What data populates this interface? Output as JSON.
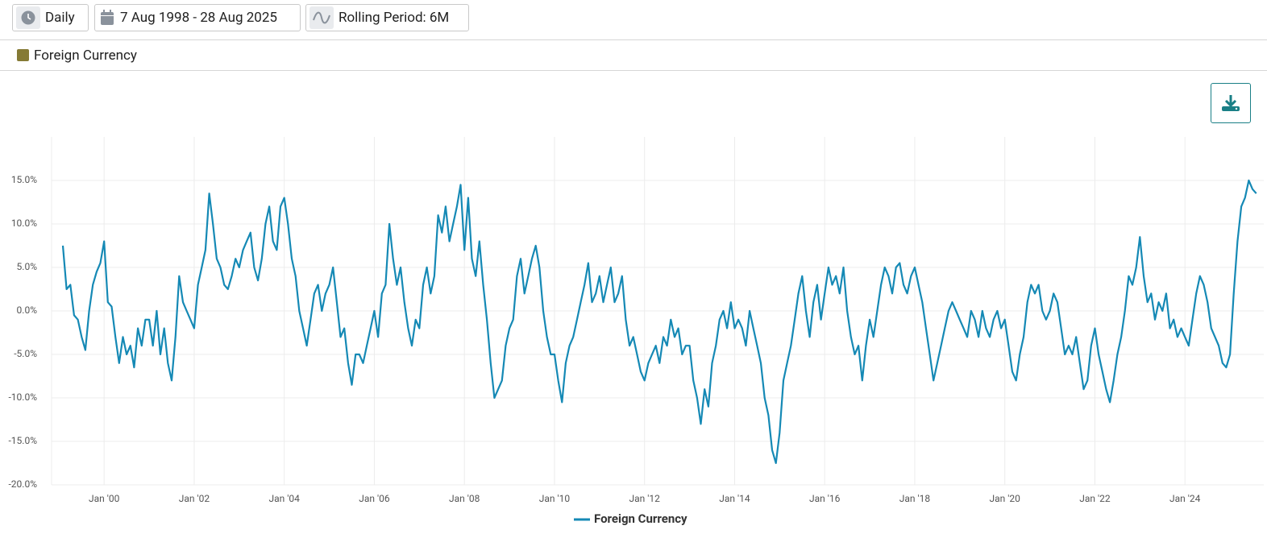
{
  "toolbar": {
    "frequency": "Daily",
    "date_range": "7 Aug 1998 - 28 Aug 2025",
    "rolling_period": "Rolling Period: 6M"
  },
  "filters": [
    {
      "name": "Foreign Currency",
      "color": "#857a35"
    }
  ],
  "chart_data": {
    "type": "line",
    "x": [
      "1999-02",
      "1999-03",
      "1999-04",
      "1999-05",
      "1999-06",
      "1999-07",
      "1999-08",
      "1999-09",
      "1999-10",
      "1999-11",
      "1999-12",
      "2000-01",
      "2000-02",
      "2000-03",
      "2000-04",
      "2000-05",
      "2000-06",
      "2000-07",
      "2000-08",
      "2000-09",
      "2000-10",
      "2000-11",
      "2000-12",
      "2001-01",
      "2001-02",
      "2001-03",
      "2001-04",
      "2001-05",
      "2001-06",
      "2001-07",
      "2001-08",
      "2001-09",
      "2001-10",
      "2001-11",
      "2001-12",
      "2002-01",
      "2002-02",
      "2002-03",
      "2002-04",
      "2002-05",
      "2002-06",
      "2002-07",
      "2002-08",
      "2002-09",
      "2002-10",
      "2002-11",
      "2002-12",
      "2003-01",
      "2003-02",
      "2003-03",
      "2003-04",
      "2003-05",
      "2003-06",
      "2003-07",
      "2003-08",
      "2003-09",
      "2003-10",
      "2003-11",
      "2003-12",
      "2004-01",
      "2004-02",
      "2004-03",
      "2004-04",
      "2004-05",
      "2004-06",
      "2004-07",
      "2004-08",
      "2004-09",
      "2004-10",
      "2004-11",
      "2004-12",
      "2005-01",
      "2005-02",
      "2005-03",
      "2005-04",
      "2005-05",
      "2005-06",
      "2005-07",
      "2005-08",
      "2005-09",
      "2005-10",
      "2005-11",
      "2005-12",
      "2006-01",
      "2006-02",
      "2006-03",
      "2006-04",
      "2006-05",
      "2006-06",
      "2006-07",
      "2006-08",
      "2006-09",
      "2006-10",
      "2006-11",
      "2006-12",
      "2007-01",
      "2007-02",
      "2007-03",
      "2007-04",
      "2007-05",
      "2007-06",
      "2007-07",
      "2007-08",
      "2007-09",
      "2007-10",
      "2007-11",
      "2007-12",
      "2008-01",
      "2008-02",
      "2008-03",
      "2008-04",
      "2008-05",
      "2008-06",
      "2008-07",
      "2008-08",
      "2008-09",
      "2008-10",
      "2008-11",
      "2008-12",
      "2009-01",
      "2009-02",
      "2009-03",
      "2009-04",
      "2009-05",
      "2009-06",
      "2009-07",
      "2009-08",
      "2009-09",
      "2009-10",
      "2009-11",
      "2009-12",
      "2010-01",
      "2010-02",
      "2010-03",
      "2010-04",
      "2010-05",
      "2010-06",
      "2010-07",
      "2010-08",
      "2010-09",
      "2010-10",
      "2010-11",
      "2010-12",
      "2011-01",
      "2011-02",
      "2011-03",
      "2011-04",
      "2011-05",
      "2011-06",
      "2011-07",
      "2011-08",
      "2011-09",
      "2011-10",
      "2011-11",
      "2011-12",
      "2012-01",
      "2012-02",
      "2012-03",
      "2012-04",
      "2012-05",
      "2012-06",
      "2012-07",
      "2012-08",
      "2012-09",
      "2012-10",
      "2012-11",
      "2012-12",
      "2013-01",
      "2013-02",
      "2013-03",
      "2013-04",
      "2013-05",
      "2013-06",
      "2013-07",
      "2013-08",
      "2013-09",
      "2013-10",
      "2013-11",
      "2013-12",
      "2014-01",
      "2014-02",
      "2014-03",
      "2014-04",
      "2014-05",
      "2014-06",
      "2014-07",
      "2014-08",
      "2014-09",
      "2014-10",
      "2014-11",
      "2014-12",
      "2015-01",
      "2015-02",
      "2015-03",
      "2015-04",
      "2015-05",
      "2015-06",
      "2015-07",
      "2015-08",
      "2015-09",
      "2015-10",
      "2015-11",
      "2015-12",
      "2016-01",
      "2016-02",
      "2016-03",
      "2016-04",
      "2016-05",
      "2016-06",
      "2016-07",
      "2016-08",
      "2016-09",
      "2016-10",
      "2016-11",
      "2016-12",
      "2017-01",
      "2017-02",
      "2017-03",
      "2017-04",
      "2017-05",
      "2017-06",
      "2017-07",
      "2017-08",
      "2017-09",
      "2017-10",
      "2017-11",
      "2017-12",
      "2018-01",
      "2018-02",
      "2018-03",
      "2018-04",
      "2018-05",
      "2018-06",
      "2018-07",
      "2018-08",
      "2018-09",
      "2018-10",
      "2018-11",
      "2018-12",
      "2019-01",
      "2019-02",
      "2019-03",
      "2019-04",
      "2019-05",
      "2019-06",
      "2019-07",
      "2019-08",
      "2019-09",
      "2019-10",
      "2019-11",
      "2019-12",
      "2020-01",
      "2020-02",
      "2020-03",
      "2020-04",
      "2020-05",
      "2020-06",
      "2020-07",
      "2020-08",
      "2020-09",
      "2020-10",
      "2020-11",
      "2020-12",
      "2021-01",
      "2021-02",
      "2021-03",
      "2021-04",
      "2021-05",
      "2021-06",
      "2021-07",
      "2021-08",
      "2021-09",
      "2021-10",
      "2021-11",
      "2021-12",
      "2022-01",
      "2022-02",
      "2022-03",
      "2022-04",
      "2022-05",
      "2022-06",
      "2022-07",
      "2022-08",
      "2022-09",
      "2022-10",
      "2022-11",
      "2022-12",
      "2023-01",
      "2023-02",
      "2023-03",
      "2023-04",
      "2023-05",
      "2023-06",
      "2023-07",
      "2023-08",
      "2023-09",
      "2023-10",
      "2023-11",
      "2023-12",
      "2024-01",
      "2024-02",
      "2024-03",
      "2024-04",
      "2024-05",
      "2024-06",
      "2024-07",
      "2024-08",
      "2024-09",
      "2024-10",
      "2024-11",
      "2024-12",
      "2025-01",
      "2025-02",
      "2025-03",
      "2025-04",
      "2025-05",
      "2025-06",
      "2025-07",
      "2025-08"
    ],
    "series": [
      {
        "name": "Foreign Currency",
        "color": "#1589b5",
        "values": [
          7.5,
          2.5,
          3,
          -0.5,
          -1,
          -3,
          -4.5,
          0,
          3,
          4.5,
          5.5,
          8,
          1,
          0.5,
          -3,
          -6,
          -3,
          -5,
          -4,
          -6.5,
          -2,
          -4,
          -1,
          -1,
          -4,
          0,
          -5,
          -2,
          -6,
          -8,
          -3,
          4,
          1,
          0,
          -1,
          -2,
          3,
          5,
          7,
          13.5,
          10,
          6,
          5,
          3,
          2.5,
          4,
          6,
          5,
          7,
          8,
          9,
          5,
          3.5,
          6,
          10,
          12,
          8,
          7,
          12,
          13,
          10,
          6,
          4,
          0,
          -2,
          -4,
          -1,
          2,
          3,
          0,
          2,
          3,
          5,
          1,
          -3,
          -2,
          -6,
          -8.5,
          -5,
          -5,
          -6,
          -4,
          -2,
          0,
          -3,
          2,
          3,
          10,
          6,
          3,
          5,
          1,
          -2,
          -4,
          -1,
          -2,
          3,
          5,
          2,
          4,
          11,
          9,
          12,
          8,
          10,
          12,
          14.5,
          7,
          13,
          6,
          4,
          8,
          3,
          -1,
          -6,
          -10,
          -9,
          -8,
          -4,
          -2,
          -1,
          4,
          6,
          2,
          4,
          6,
          7.5,
          5,
          0,
          -3,
          -5,
          -5,
          -8,
          -10.5,
          -6,
          -4,
          -3,
          -1,
          1,
          3,
          5.5,
          1,
          2,
          4,
          1,
          3,
          5,
          1,
          2,
          4,
          -1,
          -4,
          -3,
          -5,
          -7,
          -8,
          -6,
          -5,
          -4,
          -6,
          -3,
          -4,
          -1,
          -3,
          -2,
          -5,
          -4,
          -4,
          -8,
          -10,
          -13,
          -9,
          -11,
          -6,
          -4,
          -1,
          0,
          -2,
          1,
          -2,
          -1,
          -2,
          -4,
          0,
          -2,
          -4,
          -6,
          -10,
          -12,
          -16,
          -17.5,
          -14,
          -8,
          -6,
          -4,
          -1,
          2,
          4,
          0,
          -3,
          1,
          3,
          -1,
          2,
          5,
          3,
          4,
          2,
          5,
          0,
          -3,
          -5,
          -4,
          -8,
          -4,
          -1,
          -3,
          0,
          3,
          5,
          4,
          2,
          5,
          5.5,
          3,
          2,
          4,
          5,
          3,
          1,
          -2,
          -5,
          -8,
          -6,
          -4,
          -2,
          0,
          1,
          0,
          -1,
          -2,
          -3,
          0,
          -1,
          -3,
          0,
          -2,
          -3,
          -1,
          0,
          -2,
          -1,
          -4,
          -7,
          -8,
          -5,
          -3,
          1,
          3,
          2,
          3,
          0,
          -1,
          0,
          2,
          1,
          -2,
          -5,
          -4,
          -5,
          -3,
          -6,
          -9,
          -8,
          -4,
          -2,
          -5,
          -7,
          -9,
          -10.5,
          -8,
          -5,
          -3,
          0,
          4,
          3,
          5,
          8.5,
          4,
          1,
          2,
          -1,
          1,
          0,
          2,
          -2,
          -1,
          -3,
          -2,
          -3,
          -4,
          -1,
          2,
          4,
          3,
          1,
          -2,
          -3,
          -4,
          -6,
          -6.5,
          -5,
          2,
          8,
          12,
          13,
          15,
          14,
          13.5
        ]
      }
    ],
    "xlim": [
      "1998-11",
      "2025-10"
    ],
    "xticks": [
      {
        "value": "2000-01",
        "label": "Jan '00"
      },
      {
        "value": "2002-01",
        "label": "Jan '02"
      },
      {
        "value": "2004-01",
        "label": "Jan '04"
      },
      {
        "value": "2006-01",
        "label": "Jan '06"
      },
      {
        "value": "2008-01",
        "label": "Jan '08"
      },
      {
        "value": "2010-01",
        "label": "Jan '10"
      },
      {
        "value": "2012-01",
        "label": "Jan '12"
      },
      {
        "value": "2014-01",
        "label": "Jan '14"
      },
      {
        "value": "2016-01",
        "label": "Jan '16"
      },
      {
        "value": "2018-01",
        "label": "Jan '18"
      },
      {
        "value": "2020-01",
        "label": "Jan '20"
      },
      {
        "value": "2022-01",
        "label": "Jan '22"
      },
      {
        "value": "2024-01",
        "label": "Jan '24"
      }
    ],
    "ylim": [
      -20,
      20
    ],
    "yticks": [
      {
        "value": -20,
        "label": "-20.0%"
      },
      {
        "value": -15,
        "label": "-15.0%"
      },
      {
        "value": -10,
        "label": "-10.0%"
      },
      {
        "value": -5,
        "label": "-5.0%"
      },
      {
        "value": 0,
        "label": "0.0%"
      },
      {
        "value": 5,
        "label": "5.0%"
      },
      {
        "value": 10,
        "label": "10.0%"
      },
      {
        "value": 15,
        "label": "15.0%"
      }
    ],
    "grid": true,
    "legend": "bottom"
  }
}
